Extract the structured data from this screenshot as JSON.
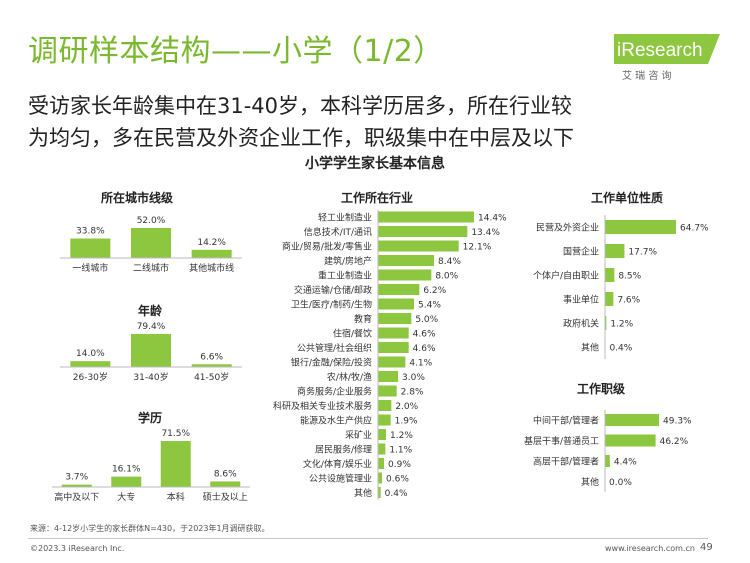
{
  "header": {
    "title": "调研样本结构——小学（1/2）",
    "subtitle_line1": "受访家长年龄集中在31-40岁，本科学历居多，所在行业较",
    "subtitle_line2": "为均匀，多在民营及外资企业工作，职级集中在中层及以下",
    "logo_text": "iResearch",
    "logo_cn": "艾 瑞 咨 询"
  },
  "colors": {
    "accent": "#7ab82e",
    "bar": "#8dc63f"
  },
  "main_title": "小学学生家长基本信息",
  "chart_data": [
    {
      "type": "bar",
      "title": "所在城市线级",
      "categories": [
        "一线城市",
        "二线城市",
        "其他城市线"
      ],
      "values": [
        33.8,
        52.0,
        14.2
      ],
      "labels": [
        "33.8%",
        "52.0%",
        "14.2%"
      ],
      "xlabel": "",
      "ylabel": ""
    },
    {
      "type": "bar",
      "title": "年龄",
      "categories": [
        "26-30岁",
        "31-40岁",
        "41-50岁"
      ],
      "values": [
        14.0,
        79.4,
        6.6
      ],
      "labels": [
        "14.0%",
        "79.4%",
        "6.6%"
      ],
      "xlabel": "",
      "ylabel": ""
    },
    {
      "type": "bar",
      "title": "学历",
      "categories": [
        "高中及以下",
        "大专",
        "本科",
        "硕士及以上"
      ],
      "values": [
        3.7,
        16.1,
        71.5,
        8.6
      ],
      "labels": [
        "3.7%",
        "16.1%",
        "71.5%",
        "8.6%"
      ],
      "xlabel": "",
      "ylabel": ""
    },
    {
      "type": "bar",
      "orientation": "horizontal",
      "title": "工作所在行业",
      "categories": [
        "轻工业制造业",
        "信息技术/IT/通讯",
        "商业/贸易/批发/零售业",
        "建筑/房地产",
        "重工业制造业",
        "交通运输/仓储/邮政",
        "卫生/医疗/制药/生物",
        "教育",
        "住宿/餐饮",
        "公共管理/社会组织",
        "银行/金融/保险/投资",
        "农/林/牧/渔",
        "商务服务/企业服务",
        "科研及相关专业技术服务",
        "能源及水生产供应",
        "采矿业",
        "居民服务/修理",
        "文化/体育/娱乐业",
        "公共设施管理业",
        "其他"
      ],
      "values": [
        14.4,
        13.4,
        12.1,
        8.4,
        8.0,
        6.2,
        5.4,
        5.0,
        4.6,
        4.6,
        4.1,
        3.0,
        2.8,
        2.0,
        1.9,
        1.2,
        1.1,
        0.9,
        0.6,
        0.4
      ],
      "labels": [
        "14.4%",
        "13.4%",
        "12.1%",
        "8.4%",
        "8.0%",
        "6.2%",
        "5.4%",
        "5.0%",
        "4.6%",
        "4.6%",
        "4.1%",
        "3.0%",
        "2.8%",
        "2.0%",
        "1.9%",
        "1.2%",
        "1.1%",
        "0.9%",
        "0.6%",
        "0.4%"
      ],
      "xlabel": "",
      "ylabel": ""
    },
    {
      "type": "bar",
      "orientation": "horizontal",
      "title": "工作单位性质",
      "categories": [
        "民营及外资企业",
        "国营企业",
        "个体户/自由职业",
        "事业单位",
        "政府机关",
        "其他"
      ],
      "values": [
        64.7,
        17.7,
        8.5,
        7.6,
        1.2,
        0.4
      ],
      "labels": [
        "64.7%",
        "17.7%",
        "8.5%",
        "7.6%",
        "1.2%",
        "0.4%"
      ],
      "xlabel": "",
      "ylabel": ""
    },
    {
      "type": "bar",
      "orientation": "horizontal",
      "title": "工作职级",
      "categories": [
        "中间干部/管理者",
        "基层干事/普通员工",
        "高层干部/管理者",
        "其他"
      ],
      "values": [
        49.3,
        46.2,
        4.4,
        0.0
      ],
      "labels": [
        "49.3%",
        "46.2%",
        "4.4%",
        "0.0%"
      ],
      "xlabel": "",
      "ylabel": ""
    }
  ],
  "footer": {
    "source": "来源：4-12岁小学生的家长群体N=430，于2023年1月调研获取。",
    "copyright": "©2023.3 iResearch Inc.",
    "website": "www.iresearch.com.cn",
    "page": "49"
  }
}
